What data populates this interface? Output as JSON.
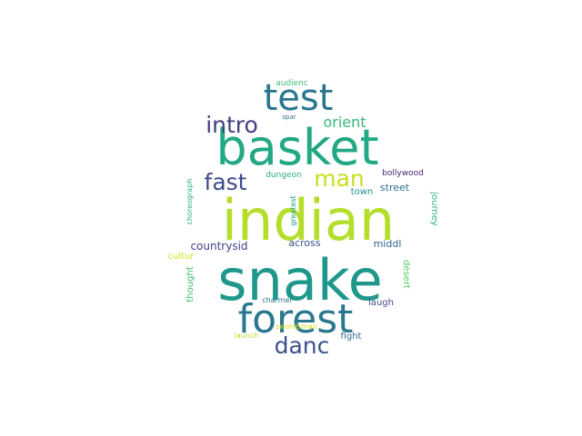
{
  "word_cloud": {
    "words": [
      {
        "text": "indian",
        "color": "#b5de2b"
      },
      {
        "text": "snake",
        "color": "#1f988b"
      },
      {
        "text": "basket",
        "color": "#22a884"
      },
      {
        "text": "forest",
        "color": "#2a788e"
      },
      {
        "text": "test",
        "color": "#2a768e"
      },
      {
        "text": "danc",
        "color": "#3b528b"
      },
      {
        "text": "intro",
        "color": "#433e85"
      },
      {
        "text": "fast",
        "color": "#3e4a89"
      },
      {
        "text": "man",
        "color": "#c8e020"
      },
      {
        "text": "orient",
        "color": "#35b779"
      },
      {
        "text": "countrysid",
        "color": "#414487"
      },
      {
        "text": "across",
        "color": "#3b528b"
      },
      {
        "text": "middl",
        "color": "#31688e"
      },
      {
        "text": "street",
        "color": "#2c728e"
      },
      {
        "text": "town",
        "color": "#21918c"
      },
      {
        "text": "laugh",
        "color": "#3e4a89"
      },
      {
        "text": "fight",
        "color": "#2f6c8e"
      },
      {
        "text": "cultur",
        "color": "#d2e21b"
      },
      {
        "text": "thought",
        "color": "#3dbc74"
      },
      {
        "text": "journey",
        "color": "#35b779"
      },
      {
        "text": "desert",
        "color": "#5ec962"
      },
      {
        "text": "choreograph",
        "color": "#2db27d"
      },
      {
        "text": "greatest",
        "color": "#1f9e89"
      },
      {
        "text": "bollywood",
        "color": "#482576"
      },
      {
        "text": "dungeon",
        "color": "#29af7f"
      },
      {
        "text": "charmer",
        "color": "#2c728e"
      },
      {
        "text": "swordsman",
        "color": "#d0e11c"
      },
      {
        "text": "launch",
        "color": "#b8de29"
      },
      {
        "text": "audienc",
        "color": "#3fbc73"
      },
      {
        "text": "spar",
        "color": "#2e6e8e"
      }
    ]
  }
}
